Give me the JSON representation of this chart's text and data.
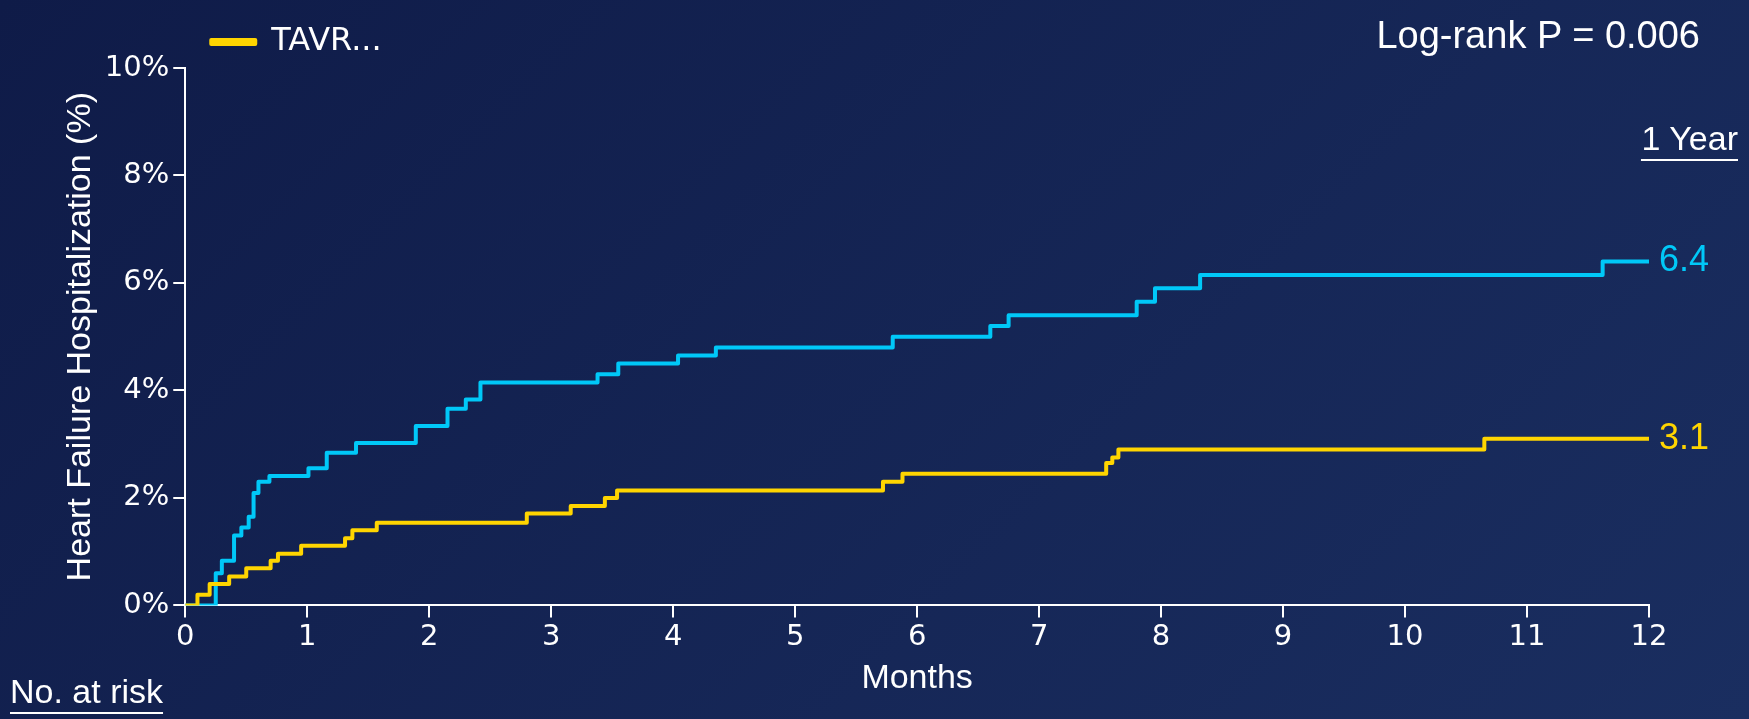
{
  "chart_data": {
    "type": "step",
    "xlabel": "Months",
    "ylabel": "Heart Failure Hospitalization (%)",
    "xlim": [
      0,
      12
    ],
    "xticks": [
      0,
      1,
      2,
      3,
      4,
      5,
      6,
      7,
      8,
      9,
      10,
      11,
      12
    ],
    "ylim": [
      0,
      10
    ],
    "yticks": [
      {
        "value": 0,
        "label": "0%"
      },
      {
        "value": 2,
        "label": "2%"
      },
      {
        "value": 4,
        "label": "4%"
      },
      {
        "value": 6,
        "label": "6%"
      },
      {
        "value": 8,
        "label": "8%"
      },
      {
        "value": 10,
        "label": "10%"
      }
    ],
    "grid": false,
    "legend": "top left",
    "annotations": [
      "Log-rank P = 0.006",
      "1 Year",
      "No. at risk"
    ],
    "series": [
      {
        "name": "TAVR...",
        "color": "#ffd500",
        "x": [
          0,
          0.1,
          0.2,
          0.36,
          0.5,
          0.7,
          0.76,
          0.95,
          1.31,
          1.37,
          1.57,
          2.8,
          3.16,
          3.44,
          3.54,
          5.72,
          5.88,
          7.55,
          7.6,
          7.65,
          10.65,
          12
        ],
        "values": [
          0,
          0.2,
          0.4,
          0.54,
          0.69,
          0.83,
          0.96,
          1.11,
          1.25,
          1.4,
          1.54,
          1.71,
          1.85,
          2.0,
          2.14,
          2.3,
          2.45,
          2.65,
          2.75,
          2.9,
          3.1,
          3.1
        ],
        "value_labels": [
          null,
          null,
          null,
          null,
          null,
          null,
          null,
          null,
          null,
          null,
          null,
          null,
          null,
          null,
          null,
          null,
          null,
          null,
          null,
          null,
          null,
          "3.1"
        ]
      },
      {
        "color": "#00c8f8",
        "x": [
          0,
          0.25,
          0.3,
          0.4,
          0.46,
          0.52,
          0.56,
          0.6,
          0.69,
          1.01,
          1.16,
          1.4,
          1.89,
          2.15,
          2.3,
          2.42,
          3.38,
          3.55,
          4.04,
          4.35,
          5.8,
          6.6,
          6.75,
          7.8,
          7.95,
          8.32,
          11.62,
          12
        ],
        "values": [
          0,
          0.6,
          0.83,
          1.3,
          1.45,
          1.65,
          2.09,
          2.3,
          2.41,
          2.55,
          2.84,
          3.02,
          3.34,
          3.66,
          3.83,
          4.15,
          4.3,
          4.5,
          4.65,
          4.8,
          5.0,
          5.2,
          5.4,
          5.65,
          5.9,
          6.15,
          6.4,
          6.4
        ],
        "value_labels": [
          null,
          null,
          null,
          null,
          null,
          null,
          null,
          null,
          null,
          null,
          null,
          null,
          null,
          null,
          null,
          null,
          null,
          null,
          null,
          null,
          null,
          null,
          null,
          null,
          null,
          null,
          null,
          "6.4"
        ]
      }
    ]
  }
}
